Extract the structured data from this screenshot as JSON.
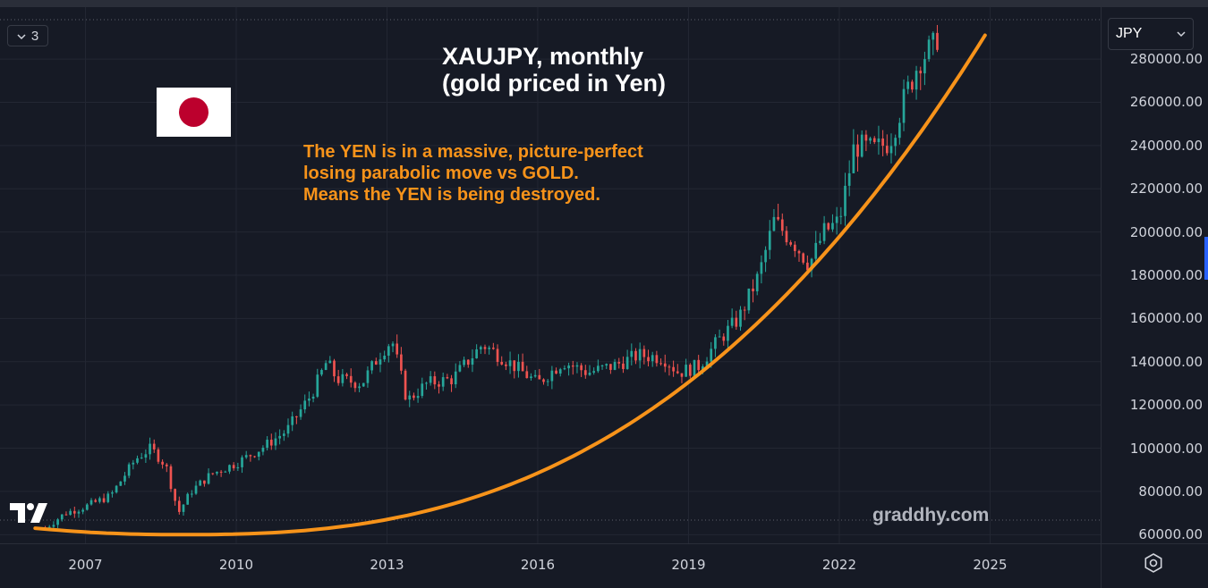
{
  "toolbar": {
    "collapse_label": "3",
    "currency_label": "JPY"
  },
  "chart_data": {
    "type": "candlestick",
    "title": "XAUJPY, monthly",
    "subtitle": "(gold priced in Yen)",
    "annotation": [
      "The YEN is in a massive, picture-perfect",
      "losing parabolic move vs GOLD.",
      "Means the YEN is being destroyed."
    ],
    "watermark": "graddhy.com",
    "x_range": [
      2005.3,
      2027.2
    ],
    "ylim": [
      56000,
      304000
    ],
    "y_ticks": [
      "280000.00",
      "260000.00",
      "240000.00",
      "220000.00",
      "200000.00",
      "180000.00",
      "160000.00",
      "140000.00",
      "120000.00",
      "100000.00",
      "80000.00",
      "60000.00"
    ],
    "x_ticks": [
      "2007",
      "2010",
      "2013",
      "2016",
      "2019",
      "2022",
      "2025"
    ],
    "up_color": "#26a69a",
    "down_color": "#ef5350",
    "curve_color": "#f7931a",
    "price_path": [
      [
        2006.2,
        63000
      ],
      [
        2006.6,
        70000
      ],
      [
        2007.0,
        73000
      ],
      [
        2007.5,
        78000
      ],
      [
        2008.0,
        95000
      ],
      [
        2008.3,
        100000
      ],
      [
        2008.6,
        92000
      ],
      [
        2008.85,
        70000
      ],
      [
        2009.1,
        80000
      ],
      [
        2009.5,
        88000
      ],
      [
        2010.0,
        93000
      ],
      [
        2010.5,
        100000
      ],
      [
        2011.0,
        108000
      ],
      [
        2011.5,
        125000
      ],
      [
        2011.8,
        140000
      ],
      [
        2012.0,
        132000
      ],
      [
        2012.5,
        130000
      ],
      [
        2012.9,
        145000
      ],
      [
        2013.1,
        150000
      ],
      [
        2013.4,
        122000
      ],
      [
        2013.8,
        130000
      ],
      [
        2014.3,
        132000
      ],
      [
        2014.9,
        148000
      ],
      [
        2015.3,
        142000
      ],
      [
        2016.0,
        130000
      ],
      [
        2016.5,
        140000
      ],
      [
        2017.0,
        135000
      ],
      [
        2017.5,
        138000
      ],
      [
        2018.0,
        143000
      ],
      [
        2018.5,
        142000
      ],
      [
        2018.8,
        135000
      ],
      [
        2019.2,
        138000
      ],
      [
        2019.6,
        150000
      ],
      [
        2020.0,
        160000
      ],
      [
        2020.4,
        180000
      ],
      [
        2020.7,
        205000
      ],
      [
        2021.1,
        195000
      ],
      [
        2021.4,
        185000
      ],
      [
        2021.7,
        200000
      ],
      [
        2022.0,
        205000
      ],
      [
        2022.3,
        240000
      ],
      [
        2022.7,
        238000
      ],
      [
        2023.0,
        242000
      ],
      [
        2023.3,
        262000
      ],
      [
        2023.6,
        280000
      ],
      [
        2023.9,
        286000
      ],
      [
        2024.0,
        295000
      ]
    ],
    "curve": {
      "x_start": 2006.0,
      "x_min": 2008.8,
      "x_end": 2024.9,
      "y_start": 63000,
      "y_min": 60000,
      "y_end": 291000
    }
  }
}
